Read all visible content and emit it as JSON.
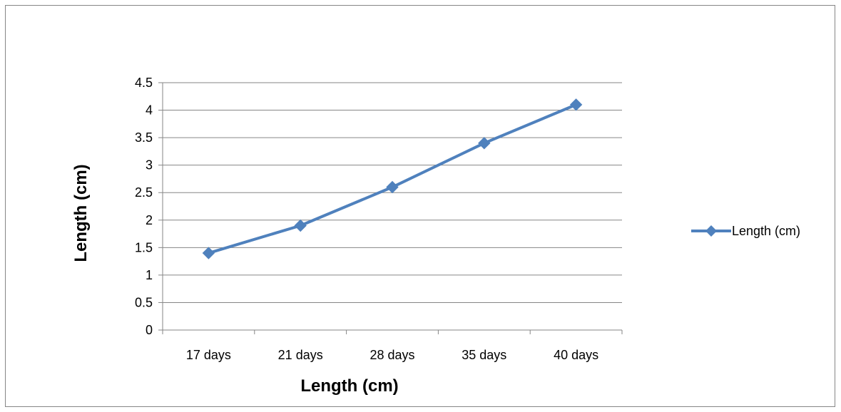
{
  "chart_data": {
    "type": "line",
    "title": "",
    "xlabel": "Length (cm)",
    "ylabel": "Length (cm)",
    "categories": [
      "17 days",
      "21 days",
      "28 days",
      "35 days",
      "40 days"
    ],
    "series": [
      {
        "name": "Length (cm)",
        "values": [
          1.4,
          1.9,
          2.6,
          3.4,
          4.1
        ],
        "color": "#4F81BD",
        "marker": "diamond"
      }
    ],
    "ylim": [
      0,
      4.5
    ],
    "yticks": [
      "0",
      "0.5",
      "1",
      "1.5",
      "2",
      "2.5",
      "3",
      "3.5",
      "4",
      "4.5"
    ],
    "grid": true,
    "legend": "right",
    "gridline_color": "#868686"
  }
}
